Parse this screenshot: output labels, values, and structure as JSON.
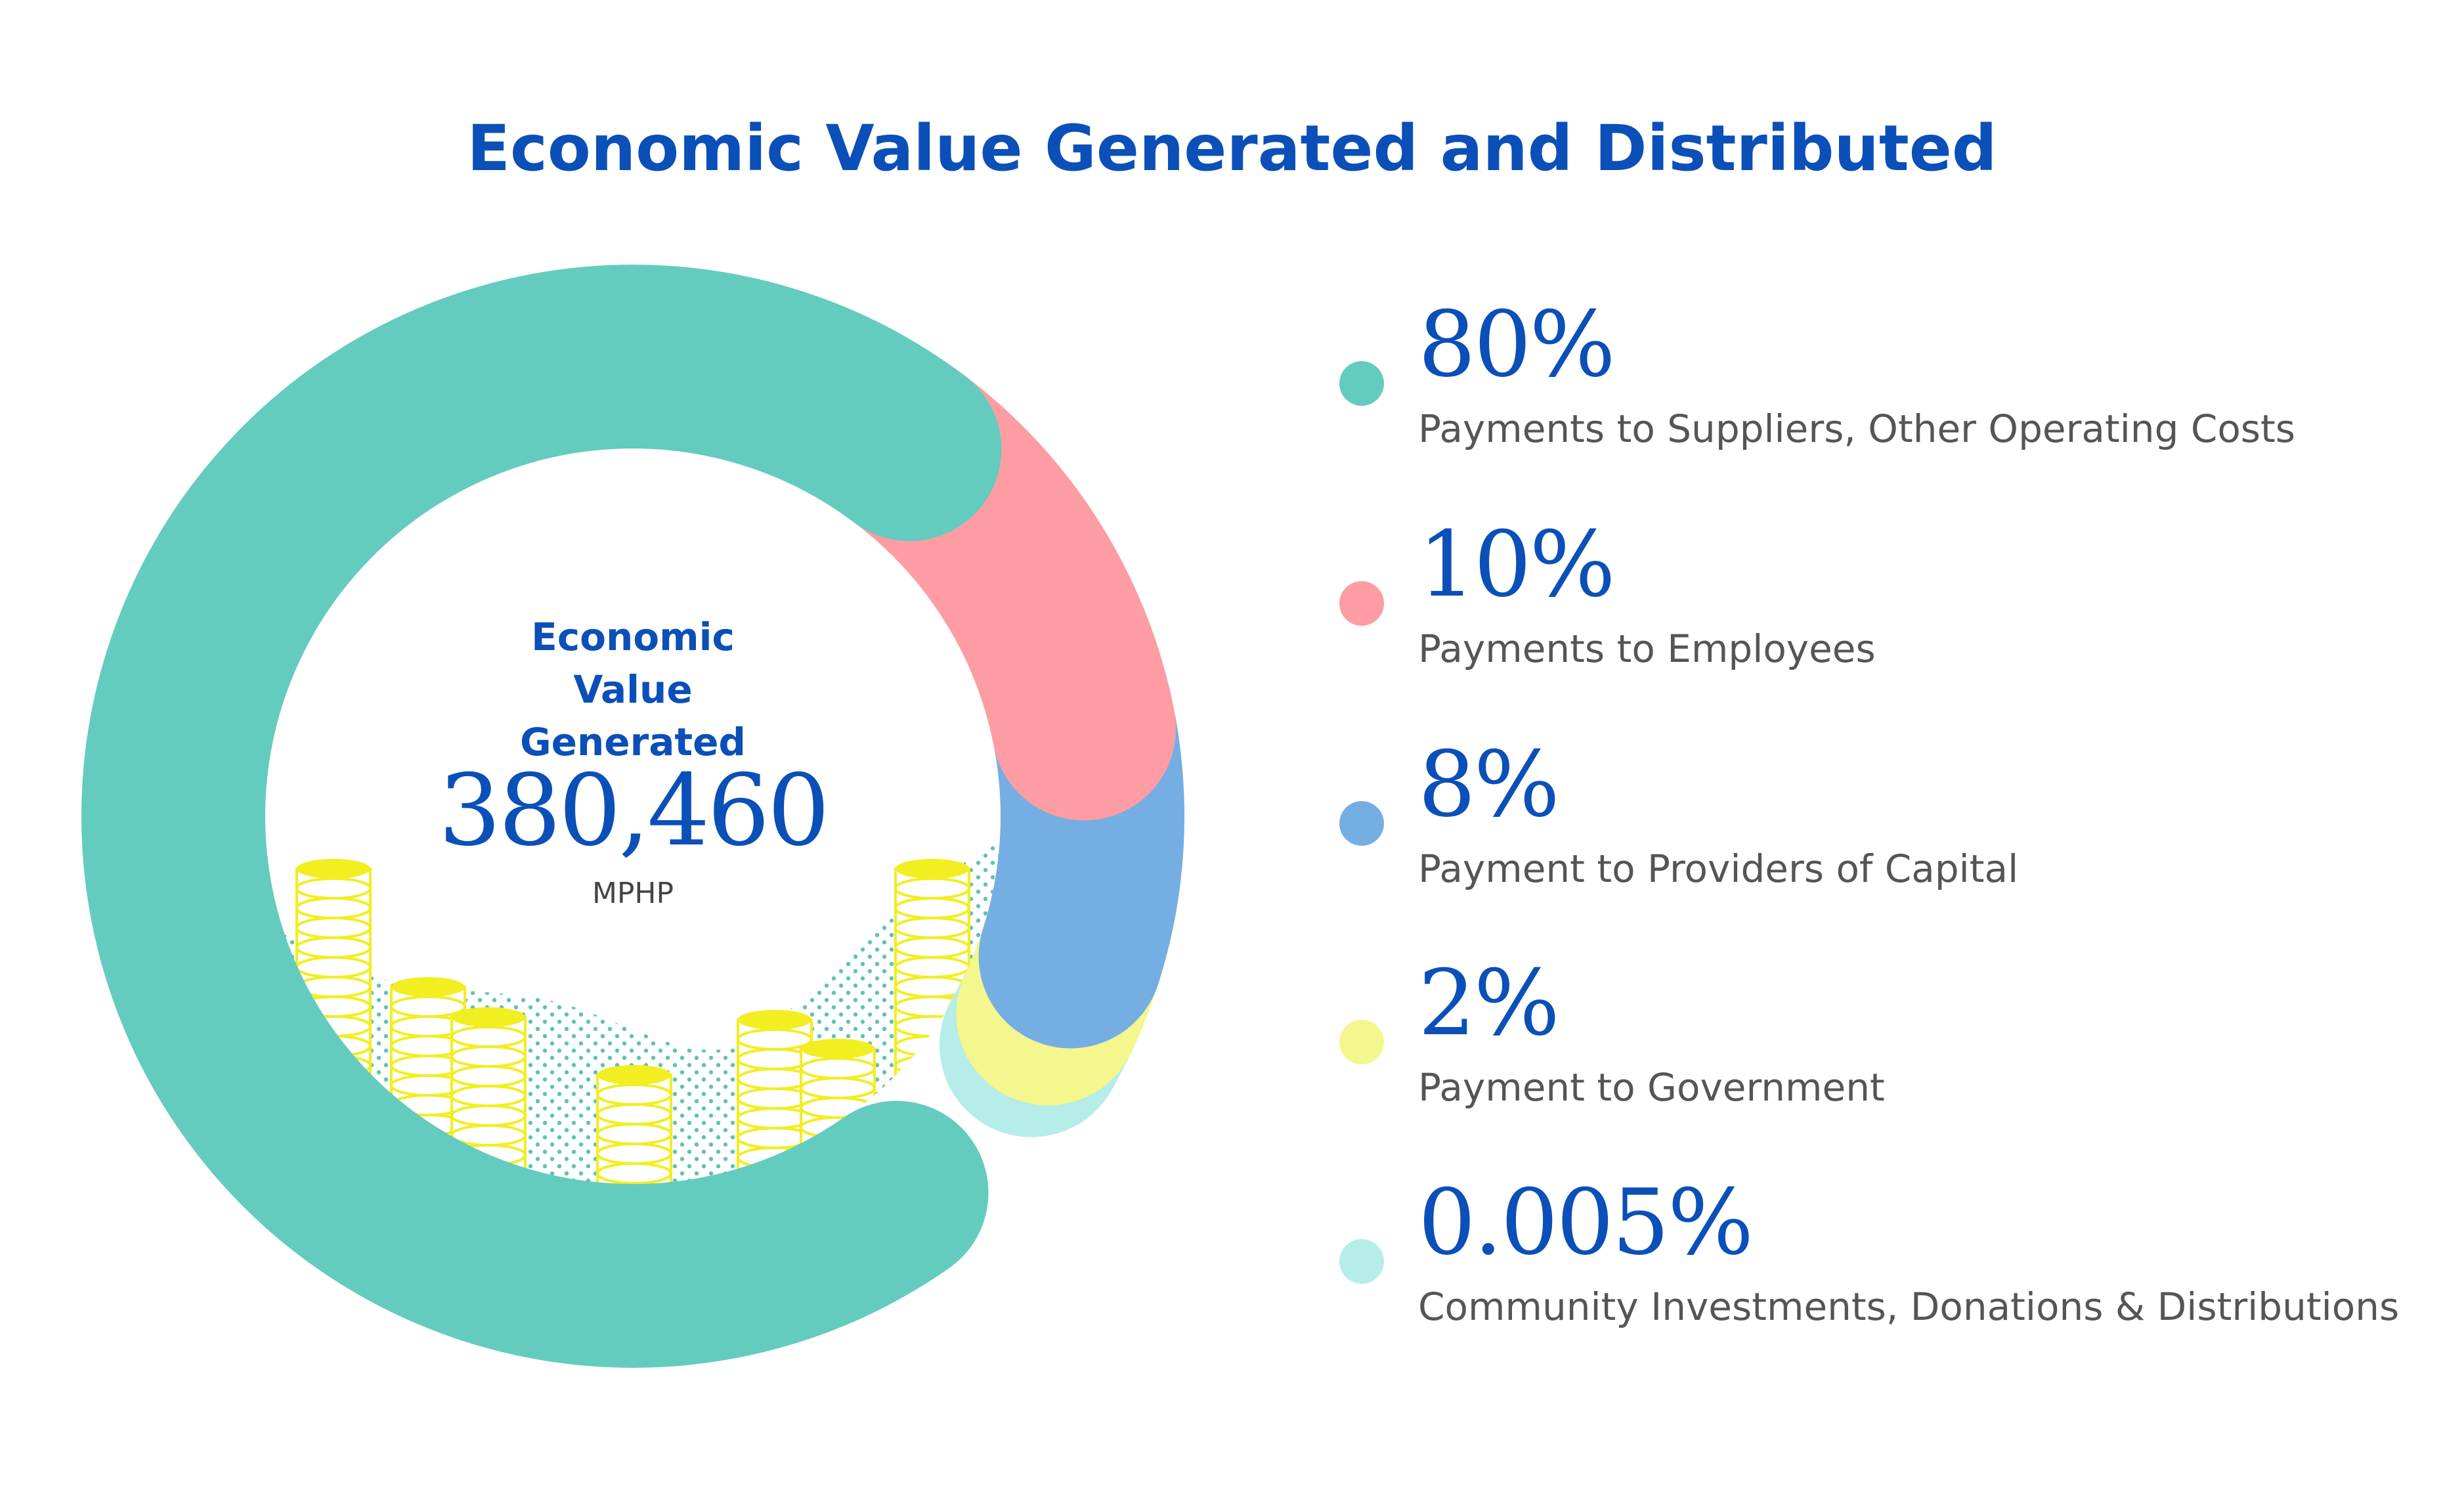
{
  "title": "Economic Value Generated and Distributed",
  "center": {
    "label": "Economic Value Generated",
    "value": "380,460",
    "unit": "MPHP"
  },
  "colors": {
    "accent": "#0b4fb8",
    "suppliers": "#64cbbf",
    "employees": "#fd9da3",
    "capital": "#75aee2",
    "government": "#f4f78d",
    "community": "#b5ede8",
    "coin": "#f2ee1f",
    "dots": "#5fc2b5"
  },
  "legend": [
    {
      "percent": "80%",
      "label": "Payments to Suppliers, Other Operating Costs",
      "color": "#64cbbf"
    },
    {
      "percent": "10%",
      "label": "Payments to Employees",
      "color": "#fd9da3"
    },
    {
      "percent": "8%",
      "label": "Payment to Providers of Capital",
      "color": "#75aee2"
    },
    {
      "percent": "2%",
      "label": "Payment to Government",
      "color": "#f4f78d"
    },
    {
      "percent": "0.005%",
      "label": "Community Investments, Donations & Distributions",
      "color": "#b5ede8"
    }
  ],
  "chart_data": {
    "type": "pie",
    "title": "Economic Value Generated and Distributed",
    "total": 380460,
    "total_unit": "MPHP",
    "categories": [
      "Payments to Suppliers, Other Operating Costs",
      "Payments to Employees",
      "Payment to Providers of Capital",
      "Payment to Government",
      "Community Investments, Donations & Distributions"
    ],
    "values": [
      80,
      10,
      8,
      2,
      0.005
    ],
    "colors": [
      "#64cbbf",
      "#fd9da3",
      "#75aee2",
      "#f4f78d",
      "#b5ede8"
    ],
    "legend": "right"
  }
}
